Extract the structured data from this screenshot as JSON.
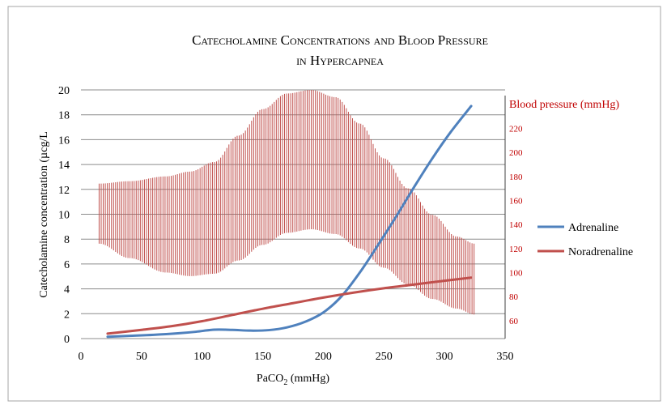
{
  "chart_data": {
    "type": "line",
    "title_line1": "Catecholamine Concentrations and Blood Pressure",
    "title_line2": "in Hypercapnea",
    "xlabel_main": "PaCO",
    "xlabel_sub": "2",
    "xlabel_unit": " (mmHg)",
    "ylabel": "Catecholamine  concentration  (µcg/L",
    "y2label": "Blood pressure (mmHg)",
    "xlim": [
      0,
      350
    ],
    "ylim": [
      0,
      20
    ],
    "y2lim": [
      45,
      250
    ],
    "x_ticks": [
      "0",
      "50",
      "100",
      "150",
      "200",
      "250",
      "300",
      "350"
    ],
    "y_ticks": [
      "0",
      "2",
      "4",
      "6",
      "8",
      "10",
      "12",
      "14",
      "16",
      "18",
      "20"
    ],
    "y2_ticks": [
      "60",
      "80",
      "100",
      "120",
      "140",
      "160",
      "180",
      "200",
      "220"
    ],
    "grid": true,
    "legend_position": "right",
    "series": [
      {
        "name": "Adrenaline",
        "color": "#4f81bd",
        "x": [
          22,
          40,
          60,
          80,
          95,
          110,
          125,
          140,
          155,
          170,
          185,
          200,
          215,
          230,
          245,
          260,
          275,
          290,
          305,
          322
        ],
        "y": [
          0.15,
          0.22,
          0.3,
          0.42,
          0.55,
          0.72,
          0.7,
          0.64,
          0.68,
          0.9,
          1.35,
          2.1,
          3.4,
          5.3,
          7.5,
          9.8,
          12.2,
          14.5,
          16.6,
          18.7
        ]
      },
      {
        "name": "Noradrenaline",
        "color": "#c0504d",
        "x": [
          22,
          50,
          75,
          100,
          125,
          150,
          175,
          200,
          225,
          250,
          275,
          300,
          322
        ],
        "y": [
          0.4,
          0.7,
          1.0,
          1.4,
          1.9,
          2.4,
          2.85,
          3.3,
          3.7,
          4.05,
          4.35,
          4.65,
          4.9
        ]
      }
    ],
    "blood_pressure_band": {
      "color": "#c0504d",
      "x": [
        15,
        40,
        70,
        90,
        110,
        130,
        150,
        170,
        190,
        210,
        230,
        250,
        270,
        290,
        310,
        325
      ],
      "upper": [
        174,
        176,
        180,
        184,
        192,
        214,
        236,
        249,
        252,
        246,
        224,
        195,
        170,
        148,
        130,
        124
      ],
      "lower": [
        124,
        112,
        100,
        97,
        99,
        110,
        123,
        133,
        136,
        132,
        120,
        104,
        90,
        78,
        70,
        65
      ]
    }
  }
}
